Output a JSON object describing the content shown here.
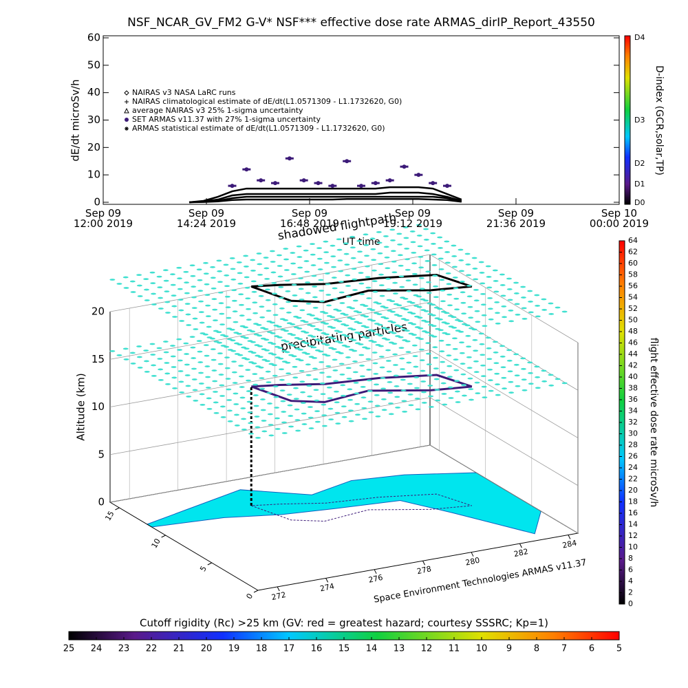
{
  "chart_data": {
    "type": "line",
    "title": "NSF_NCAR_GV_FM2 G-V* NSF*** effective dose rate ARMAS_dirIP_Report_43550",
    "xlabel": "UT time",
    "ylabel": "dE/dt microSv/h",
    "x": [
      "2019-09-09T14:00",
      "2019-09-09T14:20",
      "2019-09-09T14:40",
      "2019-09-09T15:00",
      "2019-09-09T15:20",
      "2019-09-09T15:40",
      "2019-09-09T16:00",
      "2019-09-09T16:20",
      "2019-09-09T16:40",
      "2019-09-09T17:00",
      "2019-09-09T17:20",
      "2019-09-09T17:40",
      "2019-09-09T18:00",
      "2019-09-09T18:20",
      "2019-09-09T18:40",
      "2019-09-09T19:00",
      "2019-09-09T19:20",
      "2019-09-09T19:40",
      "2019-09-09T20:00",
      "2019-09-09T20:20"
    ],
    "xlim": [
      "2019-09-09T12:00",
      "2019-09-10T00:00"
    ],
    "xticks": [
      {
        "value": "2019-09-09T12:00",
        "label": "Sep 09\n12:00 2019"
      },
      {
        "value": "2019-09-09T14:24",
        "label": "Sep 09\n14:24 2019"
      },
      {
        "value": "2019-09-09T16:48",
        "label": "Sep 09\n16:48 2019"
      },
      {
        "value": "2019-09-09T19:12",
        "label": "Sep 09\n19:12 2019"
      },
      {
        "value": "2019-09-09T21:36",
        "label": "Sep 09\n21:36 2019"
      },
      {
        "value": "2019-09-10T00:00",
        "label": "Sep 10\n00:00 2019"
      }
    ],
    "ylim": [
      0,
      60
    ],
    "yticks": [
      0,
      10,
      20,
      30,
      40,
      50,
      60
    ],
    "legend": "upper left",
    "series": [
      {
        "name": "NAIRAS v3 NASA LaRC runs",
        "color": "#000000",
        "marker": "diamond",
        "values": [
          0,
          0.2,
          0.5,
          1.5,
          2,
          2,
          2,
          2,
          2,
          2,
          2,
          2,
          2,
          2,
          2,
          2,
          2,
          2,
          1.5,
          0.3
        ]
      },
      {
        "name": "NAIRAS climatological estimate of dE/dt(L1.0571309 - L1.1732620, G0)",
        "color": "#000000",
        "marker": "plus",
        "values": [
          0,
          0.5,
          2,
          4,
          5,
          5,
          5,
          5,
          5,
          5,
          5,
          5,
          5,
          5,
          5.5,
          5.5,
          5.5,
          5,
          3,
          1
        ]
      },
      {
        "name": "average NAIRAS v3 25% 1-sigma uncertainty",
        "color": "#000000",
        "marker": "triangle",
        "values": [
          0,
          0.3,
          1,
          2.5,
          3,
          3,
          3,
          3,
          3,
          3,
          3,
          3,
          3,
          3,
          3.5,
          3.5,
          3.5,
          3,
          2,
          0.5
        ]
      },
      {
        "name": "SET ARMAS v11.37 with 27% 1-sigma uncertainty",
        "color": "#3c1a78",
        "marker": "circle",
        "values": [
          null,
          null,
          null,
          6,
          12,
          8,
          7,
          16,
          8,
          7,
          6,
          15,
          6,
          7,
          8,
          13,
          10,
          7,
          6,
          null
        ]
      },
      {
        "name": "ARMAS statistical estimate of dE/dt(L1.0571309 - L1.1732620, G0)",
        "color": "#000000",
        "marker": "asterisk",
        "values": [
          0,
          0.1,
          0.3,
          0.8,
          1,
          1,
          1,
          1,
          1,
          1,
          1,
          1.2,
          1.2,
          1.2,
          1.2,
          1.2,
          1.2,
          1,
          0.8,
          0.2
        ]
      }
    ]
  },
  "dindex_colorbar": {
    "title": "D-index (GCR,solar,TP)",
    "labels": [
      "D0",
      "D1",
      "D2",
      "D3",
      "D4"
    ]
  },
  "flight_plot": {
    "zlabel": "Altitude (km)",
    "zlim": [
      0,
      20
    ],
    "zticks": [
      0,
      5,
      10,
      15,
      20
    ],
    "xlim": [
      271.2,
      284.4
    ],
    "xticks": [
      272,
      274,
      276,
      278,
      280,
      282,
      284
    ],
    "ylim": [
      0,
      16
    ],
    "yticks": [
      0,
      5,
      10,
      15
    ],
    "annotations": [
      "shadowed flightpath",
      "precipitating particles"
    ],
    "credit": "Space Environment Technologies ARMAS v11.37"
  },
  "dose_colorbar": {
    "title": "flight effective dose rate microSv/h",
    "lim": [
      0,
      64
    ],
    "ticks": [
      0,
      2,
      4,
      6,
      8,
      10,
      12,
      14,
      16,
      18,
      20,
      22,
      24,
      26,
      28,
      30,
      32,
      34,
      36,
      38,
      40,
      42,
      44,
      46,
      48,
      50,
      52,
      54,
      56,
      58,
      60,
      62,
      64
    ]
  },
  "rigidity_colorbar": {
    "title": "Cutoff rigidity (Rc) >25 km (GV: red = greatest hazard; courtesy SSSRC; Kp=1)",
    "lim": [
      25,
      5
    ],
    "ticks": [
      25,
      24,
      23,
      22,
      21,
      20,
      19,
      18,
      17,
      16,
      15,
      14,
      13,
      12,
      11,
      10,
      9,
      8,
      7,
      6,
      5
    ]
  }
}
